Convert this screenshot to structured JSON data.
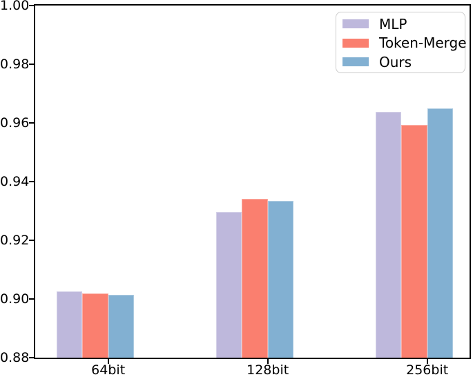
{
  "chart_data": {
    "type": "bar",
    "title": "",
    "xlabel": "",
    "ylabel": "",
    "categories": [
      "64bit",
      "128bit",
      "256bit"
    ],
    "series": [
      {
        "name": "MLP",
        "color": "#BEB8DC",
        "values": [
          0.9026,
          0.9297,
          0.9637
        ]
      },
      {
        "name": "Token-Merge",
        "color": "#FA7F6F",
        "values": [
          0.9019,
          0.9341,
          0.9592
        ]
      },
      {
        "name": "Ours",
        "color": "#82B0D2",
        "values": [
          0.9014,
          0.9333,
          0.9649
        ]
      }
    ],
    "ylim": [
      0.88,
      1.0
    ],
    "yticks": [
      "0.88",
      "0.90",
      "0.92",
      "0.94",
      "0.96",
      "0.98",
      "1.00"
    ],
    "grid": false,
    "legend_position": "upper right"
  },
  "colors": {
    "background": "#ffffff",
    "axis": "#000000",
    "text": "#000000",
    "legend_border": "#cccccc"
  }
}
